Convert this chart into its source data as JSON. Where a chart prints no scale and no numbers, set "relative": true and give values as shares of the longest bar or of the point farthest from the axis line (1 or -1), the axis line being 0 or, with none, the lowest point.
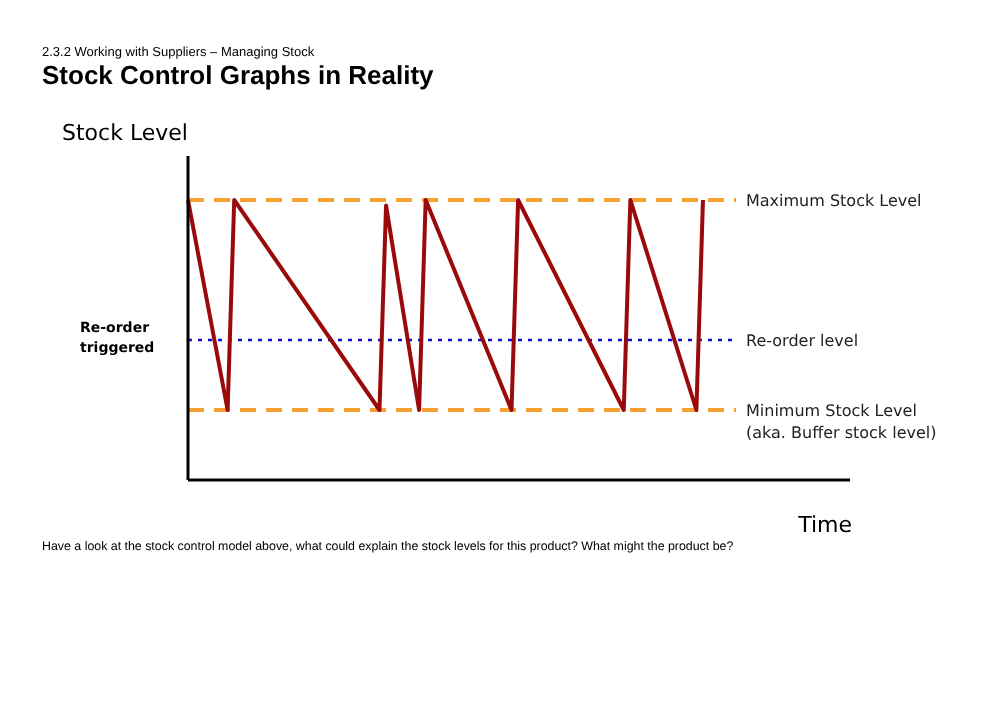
{
  "chart_data": {
    "type": "line",
    "relative": true,
    "subtitle": "2.3.2 Working with Suppliers – Managing Stock",
    "title": "Stock Control Graphs in Reality",
    "ylabel": "Stock Level",
    "xlabel": "Time",
    "line_style": "solid",
    "annotations": [
      "Re-order triggered",
      "Have a look at the stock control model above, what could explain the stock levels for this product? What might the product be?"
    ],
    "categories": [
      null,
      null,
      null,
      null,
      null,
      null,
      null,
      null,
      null,
      null,
      null,
      null,
      null,
      null,
      null,
      null,
      null,
      null,
      null,
      null,
      null,
      null,
      null,
      null,
      null,
      null,
      null,
      null,
      null,
      null,
      null,
      null,
      null,
      null,
      null,
      null,
      null,
      null,
      null,
      null,
      null,
      null,
      null,
      null,
      null,
      null,
      null,
      null,
      null,
      null,
      null,
      null,
      null,
      null,
      null,
      null,
      null,
      null,
      null,
      null,
      null,
      null,
      null,
      null,
      null,
      null,
      null,
      null,
      null,
      null,
      null,
      null,
      null,
      null,
      null,
      null,
      null,
      null,
      null,
      null,
      null,
      null,
      null,
      null
    ],
    "series": [
      {
        "color": "#9b0a0a",
        "values": [
          1,
          null,
          null,
          null,
          null,
          null,
          0.25,
          1,
          null,
          null,
          null,
          null,
          null,
          null,
          null,
          null,
          null,
          null,
          null,
          null,
          null,
          null,
          null,
          null,
          null,
          null,
          null,
          null,
          null,
          0.25,
          0.98,
          null,
          null,
          null,
          null,
          0.25,
          1,
          null,
          null,
          null,
          null,
          null,
          null,
          null,
          null,
          null,
          null,
          null,
          null,
          0.25,
          1,
          null,
          null,
          null,
          null,
          null,
          null,
          null,
          null,
          null,
          null,
          null,
          null,
          null,
          null,
          null,
          0.25,
          1,
          null,
          null,
          null,
          null,
          null,
          null,
          null,
          null,
          null,
          0.25,
          1,
          null,
          null,
          null,
          null,
          null
        ]
      }
    ],
    "ref_lines": [
      {
        "axis": "y",
        "value": 1,
        "label": "Maximum Stock Level",
        "color": "#f5a030",
        "line_style": "dashed"
      },
      {
        "axis": "y",
        "value": 0.5,
        "label": "Re-order level",
        "color": "#1010d0",
        "line_style": "dotted"
      },
      {
        "axis": "y",
        "value": 0.25,
        "label": "Minimum Stock Level\n(aka. Buffer stock level)",
        "color": "#f5a030",
        "line_style": "dashed"
      }
    ]
  }
}
